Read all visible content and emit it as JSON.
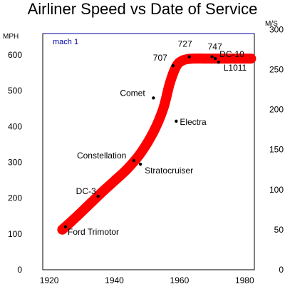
{
  "chart_data": {
    "type": "scatter",
    "title": "Airliner Speed vs Date of Service",
    "xlabel": "",
    "ylabel_left": "MPH",
    "ylabel_right": "M/S",
    "xlim": [
      1918,
      1983
    ],
    "ylim": [
      0,
      660
    ],
    "ylim_right": [
      0,
      295
    ],
    "x_ticks": [
      1920,
      1940,
      1960,
      1980
    ],
    "y_ticks": [
      0,
      100,
      200,
      300,
      400,
      500,
      600
    ],
    "y_right_ticks": [
      0,
      50,
      100,
      150,
      200,
      250,
      300
    ],
    "grid": false,
    "legend": "none",
    "colors": {
      "trend": "#ff0000",
      "reference": "#0000aa",
      "points": "#000000"
    },
    "reference_line": {
      "label": "mach 1",
      "y": 660
    },
    "trend_curve": [
      [
        1924,
        112
      ],
      [
        1928,
        145
      ],
      [
        1932,
        180
      ],
      [
        1936,
        215
      ],
      [
        1940,
        248
      ],
      [
        1944,
        282
      ],
      [
        1948,
        325
      ],
      [
        1952,
        385
      ],
      [
        1955,
        450
      ],
      [
        1957,
        520
      ],
      [
        1959,
        568
      ],
      [
        1961,
        585
      ],
      [
        1964,
        590
      ],
      [
        1968,
        590
      ],
      [
        1972,
        590
      ],
      [
        1982,
        590
      ]
    ],
    "points": [
      {
        "label": "Ford Trimotor",
        "x": 1925,
        "y": 120
      },
      {
        "label": "DC-3",
        "x": 1935,
        "y": 205
      },
      {
        "label": "Constellation",
        "x": 1946,
        "y": 305
      },
      {
        "label": "Stratocruiser",
        "x": 1948,
        "y": 295
      },
      {
        "label": "Comet",
        "x": 1952,
        "y": 480
      },
      {
        "label": "707",
        "x": 1958,
        "y": 570
      },
      {
        "label": "Electra",
        "x": 1959,
        "y": 415
      },
      {
        "label": "727",
        "x": 1963,
        "y": 595
      },
      {
        "label": "747",
        "x": 1970,
        "y": 595
      },
      {
        "label": "DC-10",
        "x": 1971,
        "y": 590
      },
      {
        "label": "L1011",
        "x": 1972,
        "y": 580
      }
    ]
  }
}
